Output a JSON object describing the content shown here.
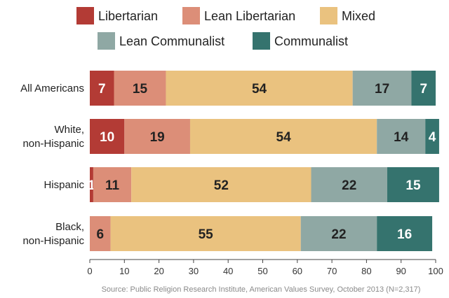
{
  "chart_data": {
    "type": "bar",
    "orientation": "horizontal",
    "stacked": true,
    "categories": [
      "All Americans",
      "White, non-Hispanic",
      "Hispanic",
      "Black, non-Hispanic"
    ],
    "category_lines": [
      [
        "All Americans"
      ],
      [
        "White,",
        "non-Hispanic"
      ],
      [
        "Hispanic"
      ],
      [
        "Black,",
        "non-Hispanic"
      ]
    ],
    "series": [
      {
        "name": "Libertarian",
        "color": "#b33b35",
        "values": [
          7,
          10,
          1,
          0
        ],
        "labels": [
          "7",
          "10",
          "1",
          ""
        ]
      },
      {
        "name": "Lean Libertarian",
        "color": "#dc8e78",
        "values": [
          15,
          19,
          11,
          6
        ],
        "labels": [
          "15",
          "19",
          "11",
          "6"
        ]
      },
      {
        "name": "Mixed",
        "color": "#eac27f",
        "values": [
          54,
          54,
          52,
          55
        ],
        "labels": [
          "54",
          "54",
          "52",
          "55"
        ]
      },
      {
        "name": "Lean Communalist",
        "color": "#8fa8a4",
        "values": [
          17,
          14,
          22,
          22
        ],
        "labels": [
          "17",
          "14",
          "22",
          "22"
        ]
      },
      {
        "name": "Communalist",
        "color": "#35736e",
        "values": [
          7,
          4,
          15,
          16
        ],
        "labels": [
          "7",
          "4",
          "15",
          "16"
        ]
      }
    ],
    "xlim": [
      0,
      100
    ],
    "xticks": [
      "0",
      "10",
      "20",
      "30",
      "40",
      "50",
      "60",
      "70",
      "80",
      "90",
      "100"
    ],
    "legend_position": "top",
    "grid": false,
    "source": "Source: Public Religion Research Institute, American Values Survey, October 2013 (N=2,317)"
  }
}
